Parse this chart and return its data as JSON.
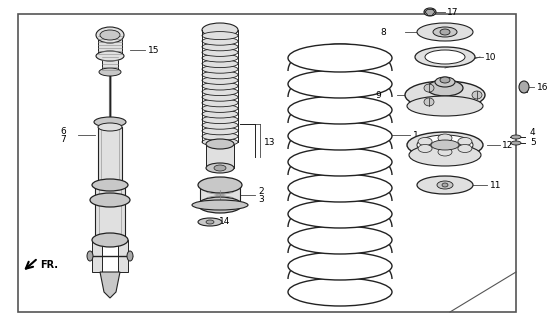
{
  "bg_color": "#ffffff",
  "border_color": "#444444",
  "line_color": "#222222",
  "gray_fill": "#c8c8c8",
  "light_gray": "#e0e0e0",
  "dark_gray": "#888888",
  "mid_gray": "#aaaaaa"
}
